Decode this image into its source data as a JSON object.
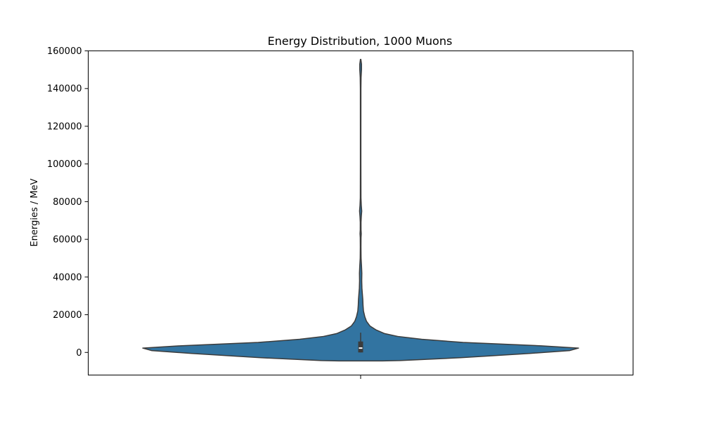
{
  "chart_data": {
    "type": "violin",
    "title": "Energy Distribution, 1000 Muons",
    "xlabel": "",
    "ylabel": "Energies / MeV",
    "ylim": [
      -12000,
      160000
    ],
    "yticks": [
      0,
      20000,
      40000,
      60000,
      80000,
      100000,
      120000,
      140000,
      160000
    ],
    "ytick_labels": [
      "0",
      "20000",
      "40000",
      "60000",
      "80000",
      "100000",
      "120000",
      "140000",
      "160000"
    ],
    "grid": false,
    "legend": "none",
    "color": "#3274a1",
    "outline_color": "#3b3b3b",
    "box": {
      "q1": 0,
      "median": 2300,
      "q3": 5800,
      "whisker_low": 0,
      "whisker_high": 10500
    },
    "density_profile": [
      {
        "y": -4500,
        "width": 0.1
      },
      {
        "y": -4300,
        "width": 0.18
      },
      {
        "y": -2800,
        "width": 0.46
      },
      {
        "y": -500,
        "width": 0.78
      },
      {
        "y": 1000,
        "width": 0.96
      },
      {
        "y": 2300,
        "width": 1.0
      },
      {
        "y": 3500,
        "width": 0.83
      },
      {
        "y": 5300,
        "width": 0.47
      },
      {
        "y": 7000,
        "width": 0.28
      },
      {
        "y": 8500,
        "width": 0.17
      },
      {
        "y": 10000,
        "width": 0.11
      },
      {
        "y": 12000,
        "width": 0.07
      },
      {
        "y": 14000,
        "width": 0.043
      },
      {
        "y": 16500,
        "width": 0.027
      },
      {
        "y": 19000,
        "width": 0.019
      },
      {
        "y": 22000,
        "width": 0.013
      },
      {
        "y": 25000,
        "width": 0.011
      },
      {
        "y": 28000,
        "width": 0.01
      },
      {
        "y": 31000,
        "width": 0.008
      },
      {
        "y": 34000,
        "width": 0.006
      },
      {
        "y": 38000,
        "width": 0.005
      },
      {
        "y": 42000,
        "width": 0.0055
      },
      {
        "y": 46000,
        "width": 0.004
      },
      {
        "y": 50000,
        "width": 0.002
      },
      {
        "y": 56000,
        "width": 0.0015
      },
      {
        "y": 61000,
        "width": 0.0018
      },
      {
        "y": 63000,
        "width": 0.0028
      },
      {
        "y": 65000,
        "width": 0.0018
      },
      {
        "y": 69000,
        "width": 0.0017
      },
      {
        "y": 72000,
        "width": 0.003
      },
      {
        "y": 75000,
        "width": 0.005
      },
      {
        "y": 78000,
        "width": 0.003
      },
      {
        "y": 82000,
        "width": 0.0015
      },
      {
        "y": 100000,
        "width": 0.0012
      },
      {
        "y": 120000,
        "width": 0.0012
      },
      {
        "y": 140000,
        "width": 0.0013
      },
      {
        "y": 146000,
        "width": 0.002
      },
      {
        "y": 150000,
        "width": 0.004
      },
      {
        "y": 153000,
        "width": 0.004
      },
      {
        "y": 155500,
        "width": 0.001
      }
    ]
  }
}
